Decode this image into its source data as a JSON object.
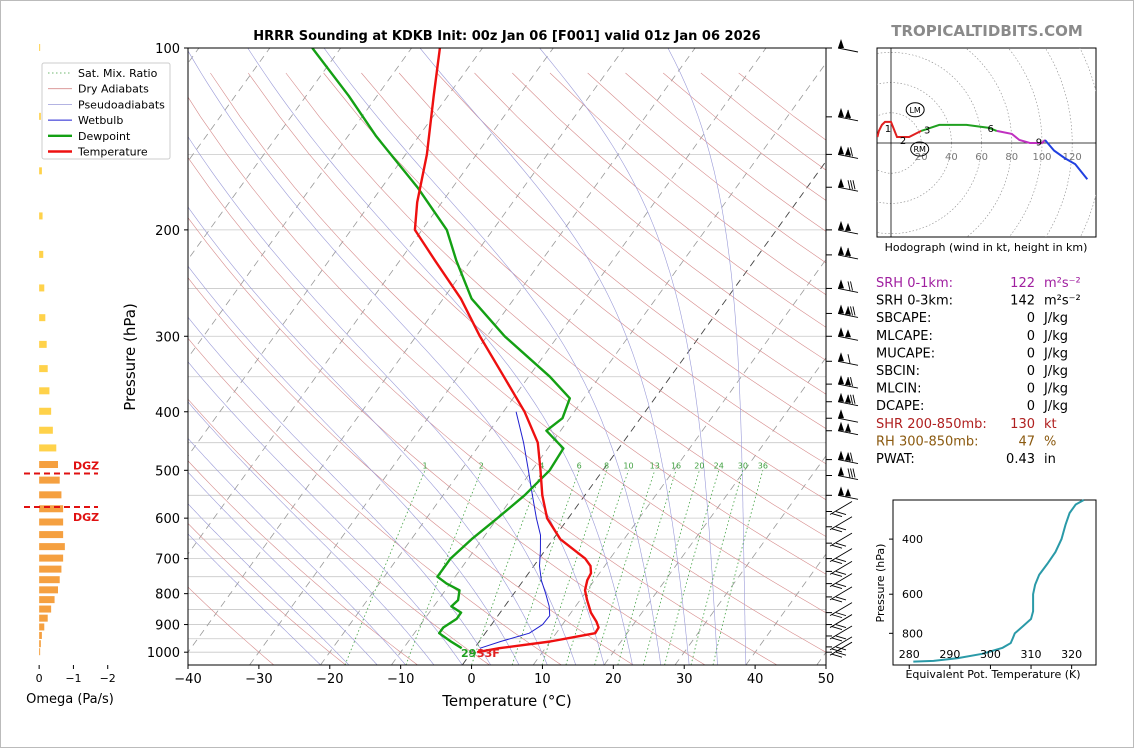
{
  "header": {
    "title": "HRRR Sounding at KDKB Init: 00z Jan 06 [F001] valid 01z Jan 06 2026",
    "watermark": "TROPICALTIDBITS.COM"
  },
  "skewt": {
    "xlabel": "Temperature (°C)",
    "ylabel": "Pressure (hPa)",
    "surface_label_td": "29",
    "surface_label_t": "33F"
  },
  "omega": {
    "xlabel": "Omega (Pa/s)",
    "dgz_label": "DGZ"
  },
  "hodograph": {
    "caption": "Hodograph (wind in kt, height in km)",
    "lm_label": "LM",
    "rm_label": "RM"
  },
  "indices": {
    "rows": [
      {
        "label": "SRH 0-1km:",
        "value": "122",
        "unit": "m²s⁻²",
        "color": "#a020a0"
      },
      {
        "label": "SRH 0-3km:",
        "value": "142",
        "unit": "m²s⁻²",
        "color": "#000000"
      },
      {
        "label": "SBCAPE:",
        "value": "0",
        "unit": "J/kg",
        "color": "#000000"
      },
      {
        "label": "MLCAPE:",
        "value": "0",
        "unit": "J/kg",
        "color": "#000000"
      },
      {
        "label": "MUCAPE:",
        "value": "0",
        "unit": "J/kg",
        "color": "#000000"
      },
      {
        "label": "SBCIN:",
        "value": "0",
        "unit": "J/kg",
        "color": "#000000"
      },
      {
        "label": "MLCIN:",
        "value": "0",
        "unit": "J/kg",
        "color": "#000000"
      },
      {
        "label": "DCAPE:",
        "value": "0",
        "unit": "J/kg",
        "color": "#000000"
      },
      {
        "label": "SHR 200-850mb:",
        "value": "130",
        "unit": "kt",
        "color": "#b02020"
      },
      {
        "label": "RH 300-850mb:",
        "value": "47",
        "unit": "%",
        "color": "#8b5a10"
      },
      {
        "label": "PWAT:",
        "value": "0.43",
        "unit": "in",
        "color": "#000000"
      }
    ]
  },
  "theta_e_panel": {
    "xlabel": "Equivalent Pot. Temperature (K)",
    "ylabel": "Pressure (hPa)"
  },
  "chart_data": [
    {
      "type": "line",
      "name": "skew-t",
      "xlim": [
        -40,
        50
      ],
      "ylim": [
        1050,
        100
      ],
      "x_ticks": [
        -40,
        -30,
        -20,
        -10,
        0,
        10,
        20,
        30,
        40,
        50
      ],
      "y_ticks": [
        100,
        200,
        300,
        400,
        500,
        600,
        700,
        800,
        900,
        1000
      ],
      "legend": [
        "Sat. Mix. Ratio",
        "Dry Adiabats",
        "Pseudoadiabats",
        "Wetbulb",
        "Dewpoint",
        "Temperature"
      ],
      "legend_position": "top-left",
      "mixing_ratio_labels": [
        "1",
        "2",
        "4",
        "6",
        "8",
        "10",
        "13",
        "16",
        "20",
        "24",
        "30",
        "36"
      ],
      "temperature": {
        "p": [
          1000,
          985,
          960,
          930,
          910,
          890,
          860,
          820,
          790,
          760,
          740,
          720,
          700,
          650,
          600,
          550,
          500,
          450,
          400,
          350,
          300,
          260,
          225,
          200,
          180,
          150,
          120,
          100
        ],
        "t": [
          0.8,
          3.5,
          10,
          15.5,
          15.4,
          14.5,
          12.8,
          11,
          9.7,
          9,
          8.8,
          8,
          6.5,
          1,
          -3,
          -6,
          -8.8,
          -12,
          -17,
          -23.5,
          -31,
          -37.5,
          -45,
          -51,
          -53.5,
          -57,
          -62,
          -66
        ]
      },
      "dewpoint": {
        "p": [
          985,
          960,
          930,
          910,
          880,
          860,
          840,
          820,
          790,
          770,
          750,
          730,
          700,
          650,
          600,
          550,
          500,
          460,
          430,
          410,
          380,
          350,
          300,
          260,
          225,
          200,
          170,
          140,
          120,
          100
        ],
        "td": [
          -1.8,
          -4,
          -6.5,
          -6.5,
          -5.5,
          -5.5,
          -7.5,
          -7.2,
          -8,
          -10.5,
          -12.5,
          -12.5,
          -12.5,
          -11.5,
          -10,
          -8.5,
          -7.5,
          -7.8,
          -12,
          -11,
          -12,
          -17,
          -27.5,
          -36,
          -42,
          -46.5,
          -55,
          -66,
          -74,
          -84
        ]
      },
      "wetbulb": {
        "p": [
          985,
          960,
          930,
          900,
          870,
          840,
          800,
          760,
          720,
          680,
          640,
          600,
          550,
          500,
          450,
          400
        ],
        "tw": [
          0.8,
          3,
          6.2,
          7.2,
          7.3,
          6.3,
          4.5,
          2.5,
          0.8,
          -0.6,
          -2.2,
          -4.5,
          -7.4,
          -10.5,
          -14,
          -18.2
        ]
      }
    },
    {
      "type": "bar",
      "name": "omega",
      "xlim": [
        0.5,
        -2.3
      ],
      "x_ticks": [
        0,
        -1,
        -2
      ],
      "dgz": [
        506,
        575
      ],
      "levels": [
        100,
        130,
        160,
        190,
        220,
        250,
        280,
        310,
        340,
        370,
        400,
        430,
        460,
        490,
        520,
        550,
        580,
        610,
        640,
        670,
        700,
        730,
        760,
        790,
        820,
        850,
        880,
        910,
        940,
        970,
        1000
      ],
      "values": [
        -0.02,
        -0.05,
        -0.08,
        -0.1,
        -0.12,
        -0.15,
        -0.18,
        -0.22,
        -0.25,
        -0.3,
        -0.35,
        -0.4,
        -0.5,
        -0.55,
        -0.6,
        -0.65,
        -0.7,
        -0.7,
        -0.7,
        -0.75,
        -0.7,
        -0.65,
        -0.6,
        -0.55,
        -0.45,
        -0.35,
        -0.25,
        -0.15,
        -0.08,
        -0.05,
        -0.02
      ]
    },
    {
      "type": "line",
      "name": "hodograph",
      "x_ticks": [
        20,
        40,
        60,
        80,
        100,
        120
      ],
      "height_labels": [
        "1",
        "2",
        "3",
        "6",
        "9"
      ],
      "segments": [
        {
          "color": "#e02020",
          "u": [
            -9,
            -8,
            -6,
            -4,
            0,
            4,
            12,
            20
          ],
          "v": [
            4,
            8,
            12,
            14,
            14,
            4,
            4,
            8
          ]
        },
        {
          "color": "#20a020",
          "u": [
            20,
            32,
            50,
            65,
            70
          ],
          "v": [
            8,
            12,
            12,
            10,
            8
          ]
        },
        {
          "color": "#c030c0",
          "u": [
            70,
            80,
            85,
            92,
            100,
            102
          ],
          "v": [
            8,
            6,
            2,
            0,
            0,
            2
          ]
        },
        {
          "color": "#2040e0",
          "u": [
            102,
            108,
            115,
            122,
            130
          ],
          "v": [
            2,
            -5,
            -10,
            -14,
            -24
          ]
        }
      ]
    },
    {
      "type": "line",
      "name": "theta-e",
      "xlim": [
        276,
        326
      ],
      "ylim": [
        1000,
        300
      ],
      "x_ticks": [
        280,
        290,
        300,
        310,
        320
      ],
      "y_ticks": [
        400,
        600,
        800
      ],
      "values": {
        "p": [
          985,
          980,
          960,
          930,
          890,
          860,
          830,
          800,
          760,
          720,
          680,
          640,
          600,
          560,
          520,
          480,
          440,
          400,
          360,
          330,
          310,
          300
        ],
        "thetae": [
          281,
          286,
          292,
          298,
          303,
          305,
          305.5,
          306,
          308,
          310,
          310.5,
          310.5,
          310.5,
          311,
          312,
          314,
          316,
          317.5,
          318.5,
          319.5,
          321,
          323
        ]
      }
    }
  ]
}
